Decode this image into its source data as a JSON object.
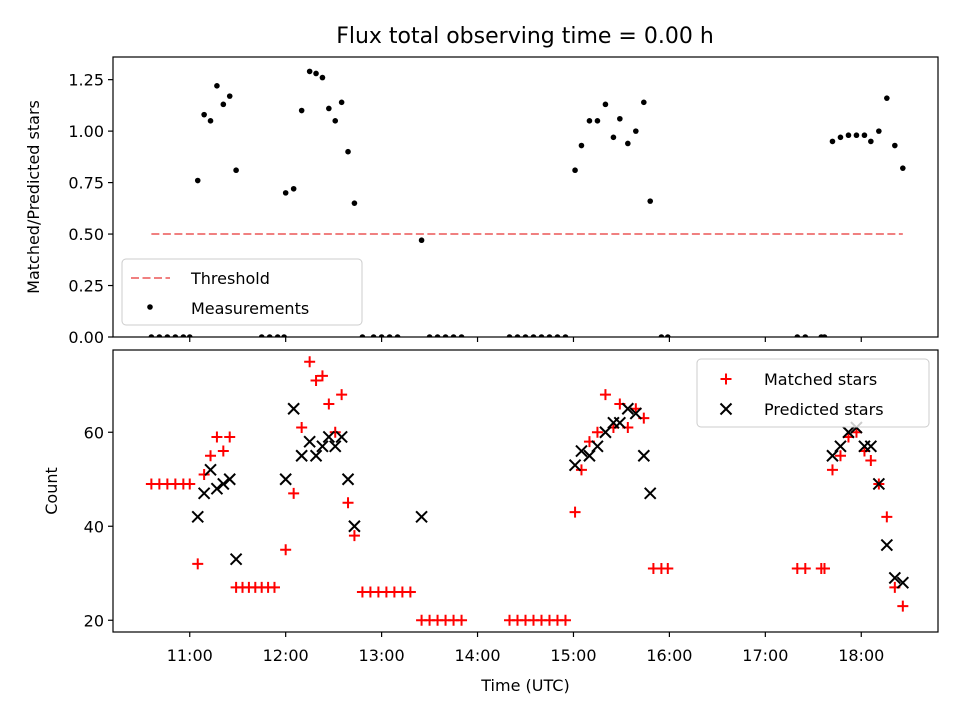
{
  "title": "Flux total observing time = 0.00 h",
  "chart_data": [
    {
      "type": "scatter",
      "panel": "top",
      "title": "Flux total observing time = 0.00 h",
      "xlabel": "",
      "ylabel": "Matched/Predicted stars",
      "xlim": [
        "10:12",
        "18:48"
      ],
      "ylim": [
        0,
        1.36
      ],
      "yticks": [
        0.0,
        0.25,
        0.5,
        0.75,
        1.0,
        1.25
      ],
      "ytick_labels": [
        "0.00",
        "0.25",
        "0.50",
        "0.75",
        "1.00",
        "1.25"
      ],
      "xticks": [
        "11:00",
        "12:00",
        "13:00",
        "14:00",
        "15:00",
        "16:00",
        "17:00",
        "18:00"
      ],
      "legend_position": "lower-left",
      "threshold": {
        "name": "Threshold",
        "value": 0.5,
        "x_range": [
          "10:36",
          "18:26"
        ],
        "color": "#f08080",
        "style": "dashed"
      },
      "series": [
        {
          "name": "Measurements",
          "marker": "dot",
          "color": "#000000",
          "points": [
            [
              "10:36",
              0.0
            ],
            [
              "10:41",
              0.0
            ],
            [
              "10:46",
              0.0
            ],
            [
              "10:51",
              0.0
            ],
            [
              "10:56",
              0.0
            ],
            [
              "11:00",
              0.0
            ],
            [
              "11:05",
              0.76
            ],
            [
              "11:09",
              1.08
            ],
            [
              "11:13",
              1.05
            ],
            [
              "11:17",
              1.22
            ],
            [
              "11:21",
              1.13
            ],
            [
              "11:25",
              1.17
            ],
            [
              "11:29",
              0.81
            ],
            [
              "11:45",
              0.0
            ],
            [
              "11:50",
              0.0
            ],
            [
              "11:55",
              0.0
            ],
            [
              "11:59",
              0.0
            ],
            [
              "12:00",
              0.7
            ],
            [
              "12:05",
              0.72
            ],
            [
              "12:10",
              1.1
            ],
            [
              "12:15",
              1.29
            ],
            [
              "12:19",
              1.28
            ],
            [
              "12:23",
              1.26
            ],
            [
              "12:27",
              1.11
            ],
            [
              "12:31",
              1.05
            ],
            [
              "12:35",
              1.14
            ],
            [
              "12:39",
              0.9
            ],
            [
              "12:43",
              0.65
            ],
            [
              "12:48",
              0.0
            ],
            [
              "12:55",
              0.0
            ],
            [
              "13:00",
              0.0
            ],
            [
              "13:05",
              0.0
            ],
            [
              "13:10",
              0.0
            ],
            [
              "13:25",
              0.47
            ],
            [
              "13:30",
              0.0
            ],
            [
              "13:35",
              0.0
            ],
            [
              "13:40",
              0.0
            ],
            [
              "13:45",
              0.0
            ],
            [
              "13:50",
              0.0
            ],
            [
              "14:20",
              0.0
            ],
            [
              "14:25",
              0.0
            ],
            [
              "14:30",
              0.0
            ],
            [
              "14:35",
              0.0
            ],
            [
              "14:40",
              0.0
            ],
            [
              "14:45",
              0.0
            ],
            [
              "14:50",
              0.0
            ],
            [
              "14:55",
              0.0
            ],
            [
              "15:01",
              0.81
            ],
            [
              "15:05",
              0.93
            ],
            [
              "15:10",
              1.05
            ],
            [
              "15:15",
              1.05
            ],
            [
              "15:20",
              1.13
            ],
            [
              "15:25",
              0.97
            ],
            [
              "15:29",
              1.06
            ],
            [
              "15:34",
              0.94
            ],
            [
              "15:39",
              1.0
            ],
            [
              "15:44",
              1.14
            ],
            [
              "15:48",
              0.66
            ],
            [
              "15:55",
              0.0
            ],
            [
              "15:59",
              0.0
            ],
            [
              "17:20",
              0.0
            ],
            [
              "17:25",
              0.0
            ],
            [
              "17:35",
              0.0
            ],
            [
              "17:37",
              0.0
            ],
            [
              "17:42",
              0.95
            ],
            [
              "17:47",
              0.97
            ],
            [
              "17:52",
              0.98
            ],
            [
              "17:57",
              0.98
            ],
            [
              "18:02",
              0.98
            ],
            [
              "18:06",
              0.95
            ],
            [
              "18:11",
              1.0
            ],
            [
              "18:16",
              1.16
            ],
            [
              "18:21",
              0.93
            ],
            [
              "18:26",
              0.82
            ]
          ]
        }
      ]
    },
    {
      "type": "scatter",
      "panel": "bottom",
      "title": "",
      "xlabel": "Time (UTC)",
      "ylabel": "Count",
      "xlim": [
        "10:12",
        "18:48"
      ],
      "ylim": [
        17.5,
        77.5
      ],
      "yticks": [
        20,
        40,
        60
      ],
      "ytick_labels": [
        "20",
        "40",
        "60"
      ],
      "xticks": [
        "11:00",
        "12:00",
        "13:00",
        "14:00",
        "15:00",
        "16:00",
        "17:00",
        "18:00"
      ],
      "legend_position": "upper-right",
      "series": [
        {
          "name": "Matched stars",
          "marker": "plus",
          "color": "#ff0000",
          "points": [
            [
              "10:36",
              49
            ],
            [
              "10:41",
              49
            ],
            [
              "10:46",
              49
            ],
            [
              "10:51",
              49
            ],
            [
              "10:56",
              49
            ],
            [
              "11:00",
              49
            ],
            [
              "11:05",
              32
            ],
            [
              "11:09",
              51
            ],
            [
              "11:13",
              55
            ],
            [
              "11:17",
              59
            ],
            [
              "11:21",
              56
            ],
            [
              "11:25",
              59
            ],
            [
              "11:29",
              27
            ],
            [
              "11:33",
              27
            ],
            [
              "11:37",
              27
            ],
            [
              "11:41",
              27
            ],
            [
              "11:45",
              27
            ],
            [
              "11:49",
              27
            ],
            [
              "11:53",
              27
            ],
            [
              "12:00",
              35
            ],
            [
              "12:05",
              47
            ],
            [
              "12:10",
              61
            ],
            [
              "12:15",
              75
            ],
            [
              "12:19",
              71
            ],
            [
              "12:23",
              72
            ],
            [
              "12:27",
              66
            ],
            [
              "12:31",
              60
            ],
            [
              "12:35",
              68
            ],
            [
              "12:39",
              45
            ],
            [
              "12:43",
              38
            ],
            [
              "12:48",
              26
            ],
            [
              "12:53",
              26
            ],
            [
              "12:58",
              26
            ],
            [
              "13:03",
              26
            ],
            [
              "13:08",
              26
            ],
            [
              "13:13",
              26
            ],
            [
              "13:18",
              26
            ],
            [
              "13:25",
              20
            ],
            [
              "13:30",
              20
            ],
            [
              "13:35",
              20
            ],
            [
              "13:40",
              20
            ],
            [
              "13:45",
              20
            ],
            [
              "13:50",
              20
            ],
            [
              "14:20",
              20
            ],
            [
              "14:25",
              20
            ],
            [
              "14:30",
              20
            ],
            [
              "14:35",
              20
            ],
            [
              "14:40",
              20
            ],
            [
              "14:45",
              20
            ],
            [
              "14:50",
              20
            ],
            [
              "14:55",
              20
            ],
            [
              "15:01",
              43
            ],
            [
              "15:05",
              52
            ],
            [
              "15:10",
              58
            ],
            [
              "15:15",
              60
            ],
            [
              "15:20",
              68
            ],
            [
              "15:25",
              61
            ],
            [
              "15:29",
              66
            ],
            [
              "15:34",
              61
            ],
            [
              "15:39",
              65
            ],
            [
              "15:44",
              63
            ],
            [
              "15:50",
              31
            ],
            [
              "15:55",
              31
            ],
            [
              "15:59",
              31
            ],
            [
              "17:20",
              31
            ],
            [
              "17:25",
              31
            ],
            [
              "17:35",
              31
            ],
            [
              "17:37",
              31
            ],
            [
              "17:42",
              52
            ],
            [
              "17:47",
              55
            ],
            [
              "17:52",
              59
            ],
            [
              "17:57",
              60
            ],
            [
              "18:02",
              56
            ],
            [
              "18:06",
              54
            ],
            [
              "18:11",
              49
            ],
            [
              "18:16",
              42
            ],
            [
              "18:21",
              27
            ],
            [
              "18:26",
              23
            ]
          ]
        },
        {
          "name": "Predicted stars",
          "marker": "x",
          "color": "#000000",
          "points": [
            [
              "11:05",
              42
            ],
            [
              "11:09",
              47
            ],
            [
              "11:13",
              52
            ],
            [
              "11:17",
              48
            ],
            [
              "11:21",
              49
            ],
            [
              "11:25",
              50
            ],
            [
              "11:29",
              33
            ],
            [
              "12:00",
              50
            ],
            [
              "12:05",
              65
            ],
            [
              "12:10",
              55
            ],
            [
              "12:15",
              58
            ],
            [
              "12:19",
              55
            ],
            [
              "12:23",
              57
            ],
            [
              "12:27",
              59
            ],
            [
              "12:31",
              57
            ],
            [
              "12:35",
              59
            ],
            [
              "12:39",
              50
            ],
            [
              "12:43",
              40
            ],
            [
              "13:25",
              42
            ],
            [
              "15:01",
              53
            ],
            [
              "15:05",
              56
            ],
            [
              "15:10",
              55
            ],
            [
              "15:15",
              57
            ],
            [
              "15:20",
              60
            ],
            [
              "15:25",
              62
            ],
            [
              "15:29",
              62
            ],
            [
              "15:34",
              65
            ],
            [
              "15:39",
              64
            ],
            [
              "15:44",
              55
            ],
            [
              "15:48",
              47
            ],
            [
              "17:42",
              55
            ],
            [
              "17:47",
              57
            ],
            [
              "17:52",
              60
            ],
            [
              "17:57",
              61
            ],
            [
              "18:02",
              57
            ],
            [
              "18:06",
              57
            ],
            [
              "18:11",
              49
            ],
            [
              "18:16",
              36
            ],
            [
              "18:21",
              29
            ],
            [
              "18:26",
              28
            ]
          ]
        }
      ]
    }
  ]
}
